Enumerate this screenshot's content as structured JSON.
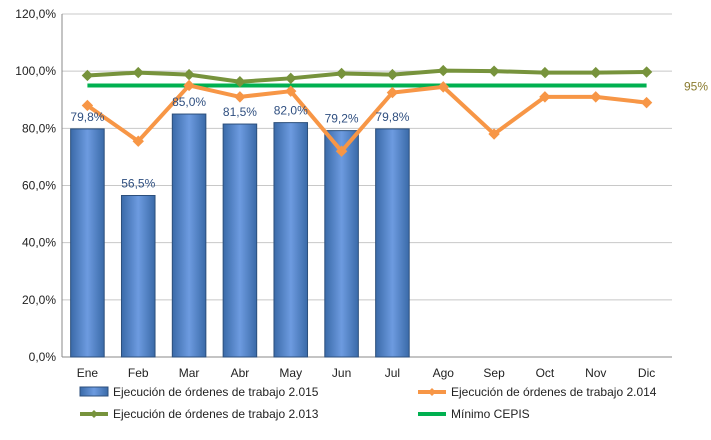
{
  "chart_data": {
    "type": "bar",
    "categories": [
      "Ene",
      "Feb",
      "Mar",
      "Abr",
      "May",
      "Jun",
      "Jul",
      "Ago",
      "Sep",
      "Oct",
      "Nov",
      "Dic"
    ],
    "ylim": [
      0,
      120
    ],
    "yticks": [
      "0,0%",
      "20,0%",
      "40,0%",
      "60,0%",
      "80,0%",
      "100,0%",
      "120,0%"
    ],
    "yticks_values": [
      0,
      20,
      40,
      60,
      80,
      100,
      120
    ],
    "grid": true,
    "legend_position": "bottom",
    "bars": {
      "name": "Ejecución de órdenes de trabajo 2.015",
      "values": [
        79.8,
        56.5,
        85.0,
        81.5,
        82.0,
        79.2,
        79.8
      ],
      "labels": [
        "79,8%",
        "56,5%",
        "85,0%",
        "81,5%",
        "82,0%",
        "79,2%",
        "79,8%"
      ],
      "color": "#4f81bd"
    },
    "series": [
      {
        "name": "Ejecución de órdenes de trabajo 2.014",
        "values": [
          88,
          75.5,
          95,
          91,
          93,
          72,
          92.5,
          94.5,
          78,
          91,
          91,
          89
        ],
        "color": "#f79646",
        "marker": "diamond"
      },
      {
        "name": "Ejecución de órdenes de trabajo 2.013",
        "values": [
          98.5,
          99.5,
          98.8,
          96.3,
          97.5,
          99.2,
          98.8,
          100.2,
          100,
          99.5,
          99.5,
          99.7
        ],
        "color": "#77933c",
        "marker": "diamond"
      },
      {
        "name": "Mínimo CEPIS",
        "values": [
          95,
          95,
          95,
          95,
          95,
          95,
          95,
          95,
          95,
          95,
          95,
          95
        ],
        "color": "#00b050",
        "marker": "none",
        "end_label": "95%"
      }
    ]
  }
}
